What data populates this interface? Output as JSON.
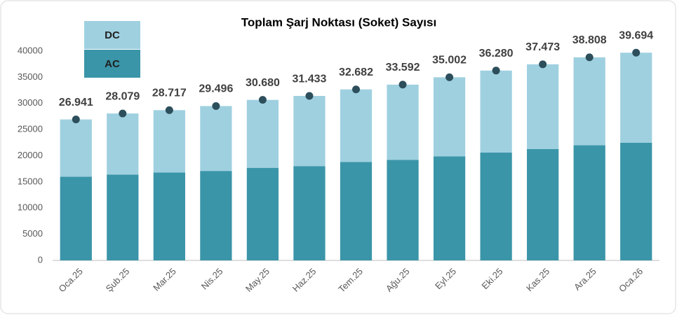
{
  "chart_data": {
    "type": "stacked_bar",
    "title": "Toplam Şarj Noktası (Soket) Sayısı",
    "categories": [
      "Oca.25",
      "Şub.25",
      "Mar.25",
      "Nis.25",
      "May.25",
      "Haz.25",
      "Tem.25",
      "Ağu.25",
      "Eyl.25",
      "Eki.25",
      "Kas.25",
      "Ara.25",
      "Oca.26"
    ],
    "series": [
      {
        "name": "AC",
        "color": "#3a95a8",
        "values": [
          16000,
          16400,
          16800,
          17100,
          17700,
          18000,
          18800,
          19200,
          19900,
          20600,
          21300,
          22000,
          22500
        ]
      },
      {
        "name": "DC",
        "color": "#9fd0e0",
        "values": [
          10941,
          11679,
          11917,
          12396,
          12980,
          13433,
          13882,
          14392,
          15102,
          15680,
          16173,
          16808,
          17194
        ]
      }
    ],
    "totals": {
      "color": "#2d4f5c",
      "values": [
        26941,
        28079,
        28717,
        29496,
        30680,
        31433,
        32682,
        33592,
        35002,
        36280,
        37473,
        38808,
        39694
      ],
      "value_labels": [
        "26.941",
        "28.079",
        "28.717",
        "29.496",
        "30.680",
        "31.433",
        "32.682",
        "33.592",
        "35.002",
        "36.280",
        "37.473",
        "38.808",
        "39.694"
      ]
    },
    "ylim": [
      0,
      40000
    ],
    "yticks": [
      0,
      5000,
      10000,
      15000,
      20000,
      25000,
      30000,
      35000,
      40000
    ],
    "grid": false
  }
}
